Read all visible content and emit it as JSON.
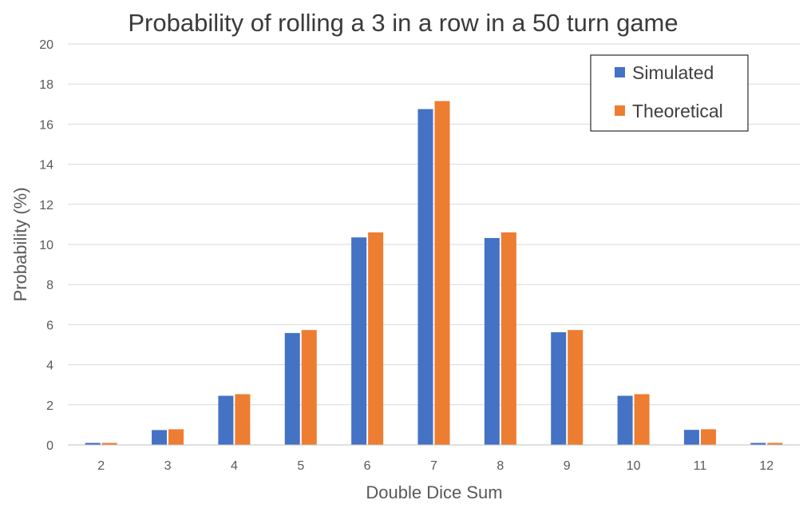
{
  "chart_data": {
    "type": "bar",
    "title": "Probability of rolling a 3 in a row in a 50 turn game",
    "xlabel": "Double Dice Sum",
    "ylabel": "Probability (%)",
    "ylim": [
      0,
      20
    ],
    "yticks": [
      "0",
      "2",
      "4",
      "6",
      "8",
      "10",
      "12",
      "14",
      "16",
      "18",
      "20"
    ],
    "grid": true,
    "legend_position": "top-right",
    "categories": [
      "2",
      "3",
      "4",
      "5",
      "6",
      "7",
      "8",
      "9",
      "10",
      "11",
      "12"
    ],
    "series": [
      {
        "name": "Simulated",
        "color": "#4472c4",
        "values": [
          0.1,
          0.74,
          2.45,
          5.58,
          10.35,
          16.75,
          10.32,
          5.62,
          2.45,
          0.75,
          0.1
        ]
      },
      {
        "name": "Theoretical",
        "color": "#ed7d31",
        "values": [
          0.1,
          0.78,
          2.53,
          5.73,
          10.6,
          17.15,
          10.6,
          5.73,
          2.53,
          0.78,
          0.1
        ]
      }
    ]
  }
}
